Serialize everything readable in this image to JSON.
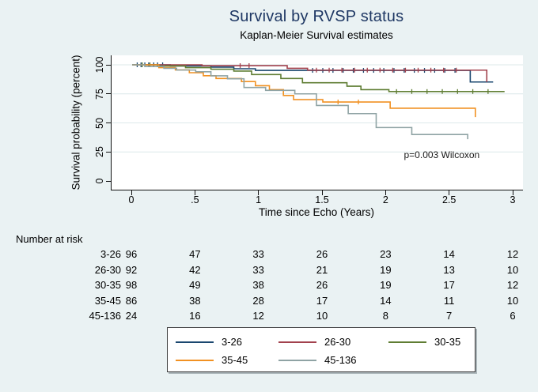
{
  "background_color": "#eaf2f3",
  "chart_data": {
    "type": "line",
    "subtype": "kaplan-meier-step-survival",
    "title": "Survival by RVSP status",
    "subtitle": "Kaplan-Meier Survival estimates",
    "title_color": "#1f3864",
    "xlabel": "Time since Echo (Years)",
    "ylabel": "Survival probability (percent)",
    "xlim": [
      0,
      3.05
    ],
    "ylim": [
      0,
      100
    ],
    "xticks": [
      0,
      0.5,
      1,
      1.5,
      2,
      2.5,
      3
    ],
    "xtick_labels": [
      "0",
      ".5",
      "1",
      "1.5",
      "2",
      "2.5",
      "3"
    ],
    "yticks": [
      0,
      25,
      50,
      75,
      100
    ],
    "ytick_labels": [
      "0",
      "25",
      "50",
      "75",
      "100"
    ],
    "grid": "horizontal-light",
    "grid_color": "#dce8ea",
    "legend_position": "bottom",
    "annotation": {
      "text": "p=0.003 Wilcoxon",
      "x": 2.25,
      "y": 22
    },
    "series": [
      {
        "name": "3-26",
        "color": "#1a476f",
        "points": [
          [
            0,
            100
          ],
          [
            0.3,
            99
          ],
          [
            0.62,
            98
          ],
          [
            0.8,
            96.6
          ],
          [
            0.97,
            95.2
          ],
          [
            2.66,
            85.2
          ],
          [
            2.84,
            85.2
          ]
        ],
        "censor_ticks": [
          0.04,
          0.07,
          0.1,
          0.13,
          0.17,
          0.2,
          0.24,
          1.42,
          1.5,
          1.58,
          1.66,
          1.74,
          1.82,
          1.9,
          1.98,
          2.06,
          2.14,
          2.22,
          2.3,
          2.38,
          2.46,
          2.54
        ]
      },
      {
        "name": "26-30",
        "color": "#a2414d",
        "points": [
          [
            0,
            100
          ],
          [
            0.55,
            99.3
          ],
          [
            1.22,
            97
          ],
          [
            1.38,
            95.4
          ],
          [
            2.79,
            85.2
          ]
        ],
        "censor_ticks": [
          0.85,
          0.92,
          1.45,
          1.55,
          1.65,
          1.75,
          1.85,
          1.95,
          2.05,
          2.15,
          2.25,
          2.35,
          2.45,
          2.55
        ]
      },
      {
        "name": "30-35",
        "color": "#5f7d33",
        "points": [
          [
            0,
            100
          ],
          [
            0.2,
            99
          ],
          [
            0.42,
            97.6
          ],
          [
            0.62,
            96.2
          ],
          [
            0.8,
            94.6
          ],
          [
            0.94,
            91.6
          ],
          [
            1.17,
            88.2
          ],
          [
            1.34,
            84.6
          ],
          [
            1.69,
            81.6
          ],
          [
            1.8,
            78.6
          ],
          [
            2.02,
            77
          ],
          [
            2.93,
            77
          ]
        ],
        "censor_ticks": [
          0.08,
          0.14,
          2.08,
          2.2,
          2.32,
          2.44,
          2.56,
          2.68,
          2.8
        ]
      },
      {
        "name": "35-45",
        "color": "#f19122",
        "points": [
          [
            0,
            100
          ],
          [
            0.21,
            97.6
          ],
          [
            0.34,
            95.6
          ],
          [
            0.45,
            93.2
          ],
          [
            0.56,
            90.6
          ],
          [
            0.66,
            88.2
          ],
          [
            0.86,
            85.6
          ],
          [
            0.97,
            82
          ],
          [
            1.08,
            78.6
          ],
          [
            1.19,
            73.6
          ],
          [
            1.27,
            70
          ],
          [
            1.5,
            68
          ],
          [
            2.03,
            62.6
          ],
          [
            2.7,
            55
          ]
        ],
        "censor_ticks": [
          1.62,
          1.78
        ]
      },
      {
        "name": "45-136",
        "color": "#8fa3a4",
        "points": [
          [
            0,
            100
          ],
          [
            0.1,
            98.5
          ],
          [
            0.25,
            97
          ],
          [
            0.35,
            95.5
          ],
          [
            0.5,
            94
          ],
          [
            0.62,
            90.5
          ],
          [
            0.75,
            88
          ],
          [
            0.88,
            80.5
          ],
          [
            1.05,
            78
          ],
          [
            1.28,
            75
          ],
          [
            1.45,
            65
          ],
          [
            1.7,
            58
          ],
          [
            1.92,
            46
          ],
          [
            2.2,
            40
          ],
          [
            2.64,
            36
          ]
        ],
        "censor_ticks": []
      }
    ]
  },
  "risk_table": {
    "title": "Number at risk",
    "time_points": [
      "0",
      ".5",
      "1",
      "1.5",
      "2",
      "2.5",
      "3"
    ],
    "rows": [
      {
        "group": "3-26",
        "counts": [
          96,
          47,
          33,
          26,
          23,
          14,
          12
        ]
      },
      {
        "group": "26-30",
        "counts": [
          92,
          42,
          33,
          21,
          19,
          13,
          10
        ]
      },
      {
        "group": "30-35",
        "counts": [
          98,
          49,
          38,
          26,
          19,
          17,
          12
        ]
      },
      {
        "group": "35-45",
        "counts": [
          86,
          38,
          28,
          17,
          14,
          11,
          10
        ]
      },
      {
        "group": "45-136",
        "counts": [
          24,
          16,
          12,
          10,
          8,
          7,
          6
        ]
      }
    ]
  },
  "legend": {
    "items": [
      {
        "label": "3-26",
        "color": "#1a476f"
      },
      {
        "label": "26-30",
        "color": "#a2414d"
      },
      {
        "label": "30-35",
        "color": "#5f7d33"
      },
      {
        "label": "35-45",
        "color": "#f19122"
      },
      {
        "label": "45-136",
        "color": "#8fa3a4"
      }
    ]
  }
}
